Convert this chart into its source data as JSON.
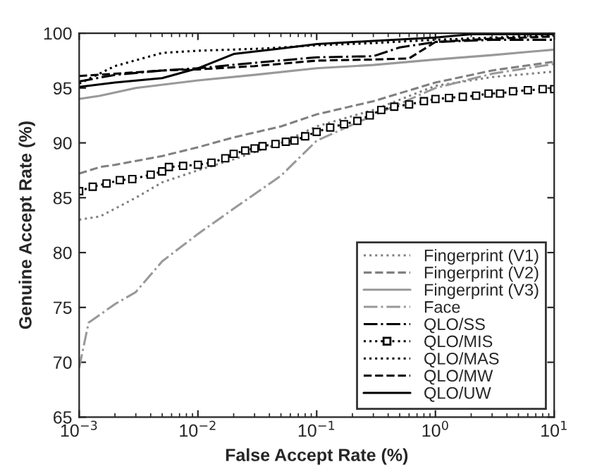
{
  "chart_data": {
    "type": "line",
    "xlabel": "False Accept Rate (%)",
    "ylabel": "Genuine Accept Rate (%)",
    "log": "x",
    "xlim": [
      0.001,
      10
    ],
    "xticks": [
      {
        "value": 0.001,
        "label": "10$^{−3}$"
      },
      {
        "value": 0.01,
        "label": "10$^{−2}$"
      },
      {
        "value": 0.1,
        "label": "10$^{−1}$"
      },
      {
        "value": 1,
        "label": "10$^{0}$"
      },
      {
        "value": 10,
        "label": "10$^{1}$"
      }
    ],
    "ylim": [
      65,
      100
    ],
    "yticks": [
      65,
      70,
      75,
      80,
      85,
      90,
      95,
      100
    ],
    "grid": false,
    "legend": "bottom right",
    "series": [
      {
        "name": "Fingerprint (V1)",
        "color": "#808080",
        "line_style": "dotted",
        "x": [
          0.001,
          0.0015,
          0.002,
          0.003,
          0.005,
          0.01,
          0.02,
          0.05,
          0.1,
          0.3,
          1,
          3,
          10
        ],
        "values": [
          83.0,
          83.3,
          84.0,
          85.0,
          86.4,
          87.5,
          88.5,
          90.0,
          91.5,
          93.0,
          95.2,
          96.0,
          96.5
        ]
      },
      {
        "name": "Fingerprint (V2)",
        "color": "#808080",
        "line_style": "dashed",
        "x": [
          0.001,
          0.0015,
          0.002,
          0.005,
          0.01,
          0.02,
          0.05,
          0.1,
          0.3,
          1,
          3,
          10
        ],
        "values": [
          87.2,
          87.8,
          88.0,
          88.8,
          89.6,
          90.5,
          91.5,
          92.6,
          93.8,
          95.5,
          96.6,
          97.4
        ]
      },
      {
        "name": "Fingerprint (V3)",
        "color": "#999999",
        "line_style": "solid",
        "x": [
          0.001,
          0.0015,
          0.003,
          0.01,
          0.03,
          0.1,
          0.3,
          1,
          3,
          10
        ],
        "values": [
          94.0,
          94.3,
          95.0,
          95.7,
          96.2,
          96.8,
          97.1,
          97.6,
          98.0,
          98.5
        ]
      },
      {
        "name": "Face",
        "color": "#999999",
        "line_style": "dashdot",
        "x": [
          0.001,
          0.0012,
          0.002,
          0.003,
          0.005,
          0.01,
          0.02,
          0.05,
          0.1,
          0.3,
          1,
          3,
          10
        ],
        "values": [
          69.5,
          73.6,
          75.3,
          76.4,
          79.2,
          81.7,
          84.0,
          87.0,
          90.2,
          92.5,
          95.0,
          96.3,
          97.2
        ]
      },
      {
        "name": "QLO/SS",
        "color": "#000000",
        "line_style": "dashdot",
        "x": [
          0.001,
          0.002,
          0.005,
          0.01,
          0.03,
          0.1,
          0.3,
          0.5,
          1,
          3,
          10
        ],
        "values": [
          95.6,
          96.2,
          96.6,
          96.8,
          97.3,
          97.8,
          97.9,
          98.7,
          99.2,
          99.4,
          99.4
        ]
      },
      {
        "name": "QLO/MIS",
        "color": "#000000",
        "line_style": "dotted",
        "marker": "square",
        "x": [
          0.001,
          0.0013,
          0.0017,
          0.0022,
          0.0028,
          0.004,
          0.005,
          0.0057,
          0.0075,
          0.01,
          0.013,
          0.017,
          0.02,
          0.025,
          0.03,
          0.035,
          0.045,
          0.055,
          0.065,
          0.08,
          0.1,
          0.13,
          0.17,
          0.22,
          0.28,
          0.35,
          0.45,
          0.6,
          0.8,
          1,
          1.3,
          1.7,
          2.2,
          2.8,
          3.5,
          4.5,
          6,
          8,
          10
        ],
        "values": [
          85.6,
          86.0,
          86.3,
          86.6,
          86.7,
          87.1,
          87.4,
          87.8,
          87.9,
          88.0,
          88.2,
          88.6,
          89.0,
          89.3,
          89.5,
          89.7,
          89.9,
          90.1,
          90.2,
          90.6,
          91.0,
          91.4,
          91.7,
          92.0,
          92.5,
          93.0,
          93.3,
          93.5,
          93.8,
          94.0,
          94.1,
          94.2,
          94.3,
          94.5,
          94.5,
          94.7,
          94.8,
          94.9,
          94.9
        ]
      },
      {
        "name": "QLO/MAS",
        "color": "#000000",
        "line_style": "dotted",
        "x": [
          0.001,
          0.002,
          0.005,
          0.01,
          0.036,
          0.1,
          0.3,
          1,
          3,
          10
        ],
        "values": [
          95.4,
          97.0,
          98.2,
          98.4,
          98.6,
          98.9,
          99.1,
          99.4,
          99.6,
          99.8
        ]
      },
      {
        "name": "QLO/MW",
        "color": "#000000",
        "line_style": "dashed",
        "x": [
          0.001,
          0.002,
          0.005,
          0.01,
          0.03,
          0.1,
          0.3,
          0.6,
          1,
          3,
          10
        ],
        "values": [
          96.1,
          96.3,
          96.6,
          96.7,
          97.0,
          97.5,
          97.6,
          97.7,
          99.2,
          99.5,
          99.7
        ]
      },
      {
        "name": "QLO/UW",
        "color": "#000000",
        "line_style": "solid",
        "x": [
          0.001,
          0.002,
          0.005,
          0.01,
          0.02,
          0.05,
          0.1,
          0.3,
          1,
          2,
          10
        ],
        "values": [
          95.1,
          95.5,
          95.9,
          96.8,
          98.1,
          98.6,
          99.0,
          99.3,
          99.6,
          99.9,
          99.9
        ]
      }
    ]
  }
}
